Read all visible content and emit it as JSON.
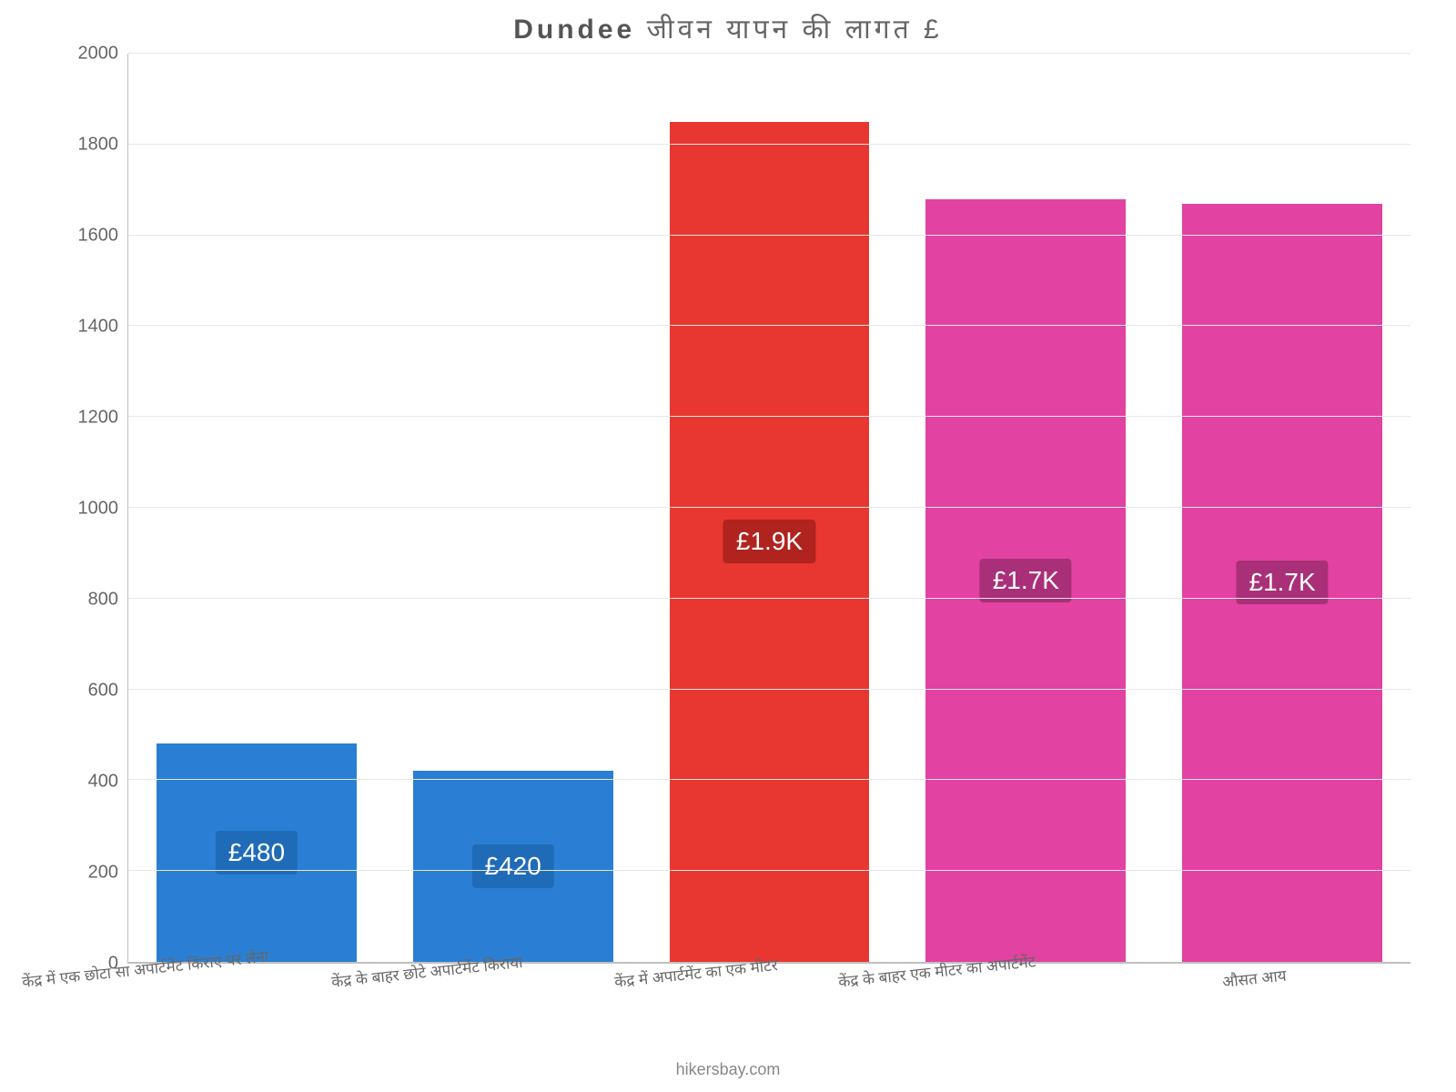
{
  "chart": {
    "type": "bar",
    "title_prefix_bold": "Dundee",
    "title_rest": " जीवन    यापन    की    लागत    £",
    "title_fontsize": 30,
    "background_color": "#ffffff",
    "grid_color": "#e7e7e7",
    "axis_line_color": "#bfbfbf",
    "tick_label_color": "#666666",
    "tick_fontsize": 20,
    "x_label_fontsize": 17,
    "ylim": [
      0,
      2000
    ],
    "ytick_step": 200,
    "yticks": [
      0,
      200,
      400,
      600,
      800,
      1000,
      1200,
      1400,
      1600,
      1800,
      2000
    ],
    "bar_width_pct": 78,
    "attribution": "hikersbay.com",
    "attribution_fontsize": 18,
    "badge_fontsize": 28,
    "badge_text_color": "#ffffff",
    "categories": [
      {
        "label": "केंद्र में एक छोटा सा अपार्टमेंट किराए पर लेना",
        "value": 480,
        "display_value": "£480",
        "bar_color": "#2a7fd4",
        "badge_bg": "#1f6bb8"
      },
      {
        "label": "केंद्र के बाहर छोटे अपार्टमेंट किराया",
        "value": 420,
        "display_value": "£420",
        "bar_color": "#2a7fd4",
        "badge_bg": "#1f6bb8"
      },
      {
        "label": "केंद्र में अपार्टमेंट का एक मीटर",
        "value": 1850,
        "display_value": "£1.9K",
        "bar_color": "#e83730",
        "badge_bg": "#b0231e"
      },
      {
        "label": "केंद्र के बाहर एक मीटर का अपार्टमेंट",
        "value": 1680,
        "display_value": "£1.7K",
        "bar_color": "#e242a1",
        "badge_bg": "#a92f78"
      },
      {
        "label": "औसत आय",
        "value": 1670,
        "display_value": "£1.7K",
        "bar_color": "#e242a1",
        "badge_bg": "#a92f78"
      }
    ]
  }
}
